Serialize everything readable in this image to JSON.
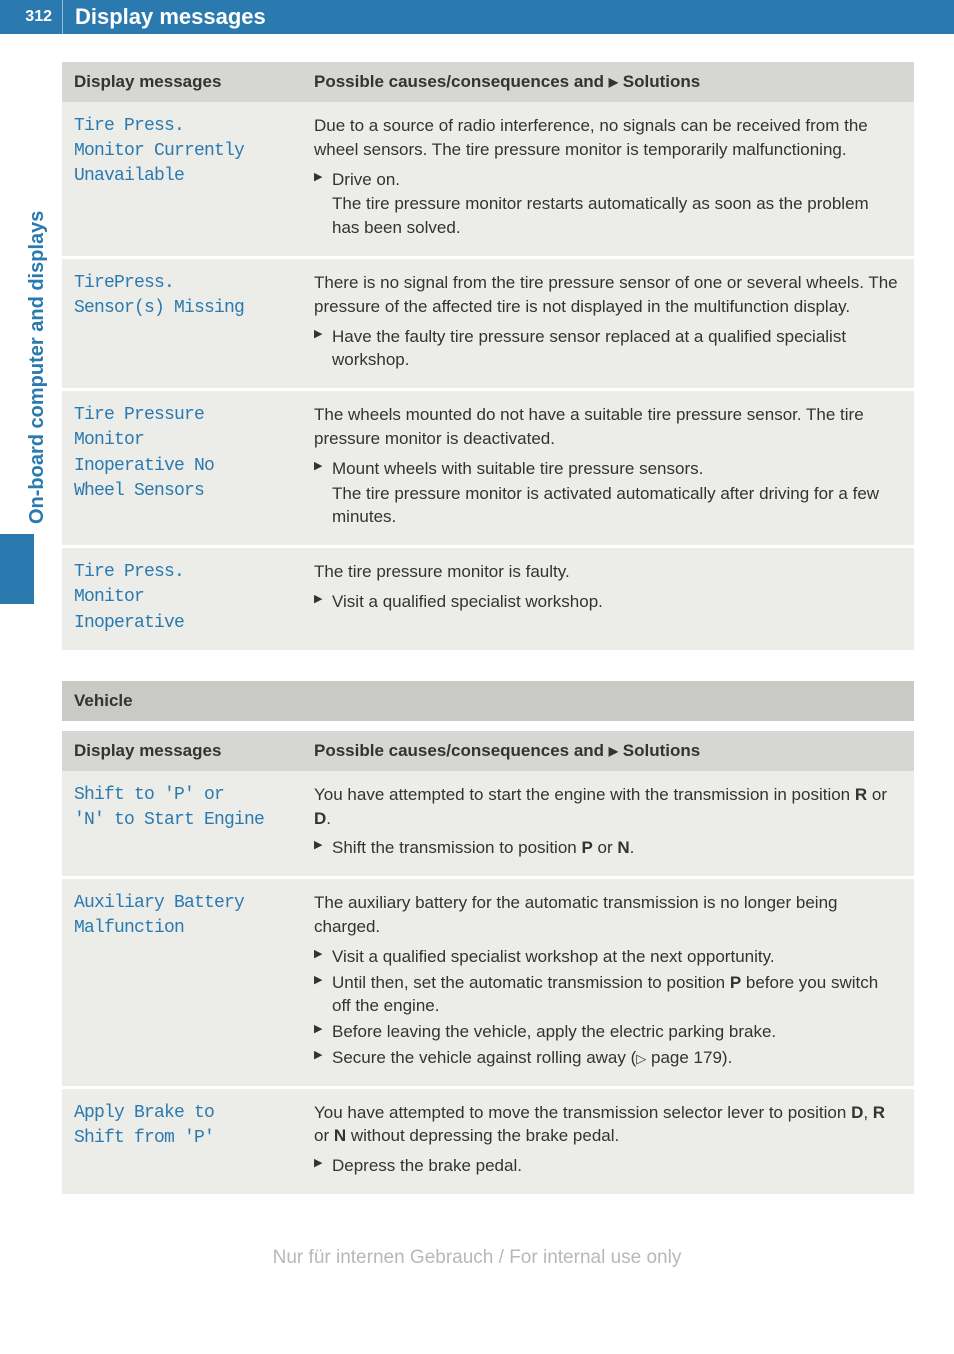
{
  "page_number": "312",
  "header_title": "Display messages",
  "side_tab": "On-board computer and displays",
  "columns": {
    "messages": "Display messages",
    "causes": "Possible causes/consequences and ",
    "solutions": " Solutions"
  },
  "table1": [
    {
      "msg": "Tire Press.\nMonitor Currently\nUnavailable",
      "cause": "Due to a source of radio interference, no signals can be received from the wheel sensors. The tire pressure monitor is temporarily malfunctioning.",
      "solutions": [
        {
          "main": "Drive on.",
          "sub": "The tire pressure monitor restarts automatically as soon as the problem has been solved."
        }
      ]
    },
    {
      "msg": "TirePress.\nSensor(s) Missing",
      "cause": "There is no signal from the tire pressure sensor of one or several wheels. The pressure of the affected tire is not displayed in the multifunction display.",
      "solutions": [
        {
          "main": "Have the faulty tire pressure sensor replaced at a qualified specialist workshop."
        }
      ]
    },
    {
      "msg": "Tire Pressure\nMonitor\nInoperative No\nWheel Sensors",
      "cause": "The wheels mounted do not have a suitable tire pressure sensor. The tire pressure monitor is deactivated.",
      "solutions": [
        {
          "main": "Mount wheels with suitable tire pressure sensors.",
          "sub": "The tire pressure monitor is activated automatically after driving for a few minutes."
        }
      ]
    },
    {
      "msg": "Tire Press.\nMonitor\nInoperative",
      "cause": "The tire pressure monitor is faulty.",
      "solutions": [
        {
          "main": "Visit a qualified specialist workshop."
        }
      ]
    }
  ],
  "section2_title": "Vehicle",
  "table2": [
    {
      "msg": "Shift to 'P' or\n'N' to Start Engine",
      "cause_html": "You have attempted to start the engine with the transmission in position <b>R</b> or <b>D</b>.",
      "solutions": [
        {
          "main_html": "Shift the transmission to position <b>P</b> or <b>N</b>."
        }
      ]
    },
    {
      "msg": "Auxiliary Battery\nMalfunction",
      "cause_html": "The auxiliary battery for the automatic transmission is no longer being charged.",
      "solutions": [
        {
          "main_html": "Visit a qualified specialist workshop at the next opportunity."
        },
        {
          "main_html": "Until then, set the automatic transmission to position <b>P</b> before you switch off the engine."
        },
        {
          "main_html": "Before leaving the vehicle, apply the electric parking brake."
        },
        {
          "main_html": "Secure the vehicle against rolling away (<span class='tri-outline'>▷</span> page 179)."
        }
      ]
    },
    {
      "msg": "Apply Brake to\nShift from 'P'",
      "cause_html": "You have attempted to move the transmission selector lever to position <b>D</b>, <b>R</b> or <b>N</b> without depressing the brake pedal.",
      "solutions": [
        {
          "main_html": "Depress the brake pedal."
        }
      ]
    }
  ],
  "footer": "Nur für internen Gebrauch / For internal use only"
}
